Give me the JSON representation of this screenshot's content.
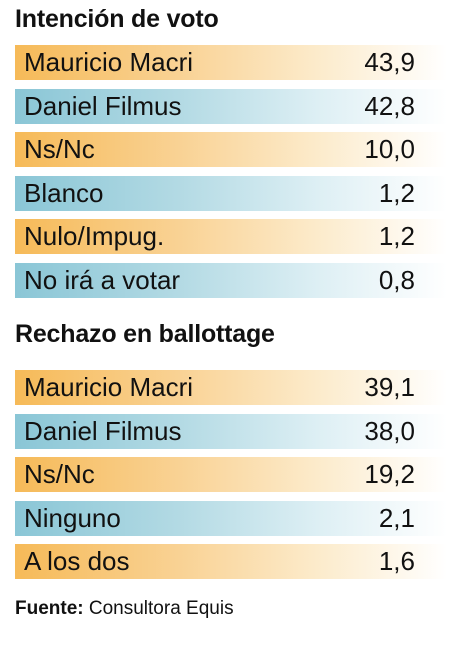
{
  "chart_data": [
    {
      "type": "table",
      "title": "Intención de voto",
      "categories": [
        "Mauricio Macri",
        "Daniel Filmus",
        "Ns/Nc",
        "Blanco",
        "Nulo/Impug.",
        "No irá a votar"
      ],
      "values": [
        43.9,
        42.8,
        10.0,
        1.2,
        1.2,
        0.8
      ],
      "value_labels": [
        "43,9",
        "42,8",
        "10,0",
        "1,2",
        "1,2",
        "0,8"
      ]
    },
    {
      "type": "table",
      "title": "Rechazo en ballottage",
      "categories": [
        "Mauricio Macri",
        "Daniel Filmus",
        "Ns/Nc",
        "Ninguno",
        "A los dos"
      ],
      "values": [
        39.1,
        38.0,
        19.2,
        2.1,
        1.6
      ],
      "value_labels": [
        "39,1",
        "38,0",
        "19,2",
        "2,1",
        "1,6"
      ]
    }
  ],
  "colors": {
    "orange_row": "#f6ba58",
    "blue_row": "#8ac6d6",
    "text": "#111111"
  },
  "source": {
    "label": "Fuente:",
    "text": " Consultora Equis"
  }
}
